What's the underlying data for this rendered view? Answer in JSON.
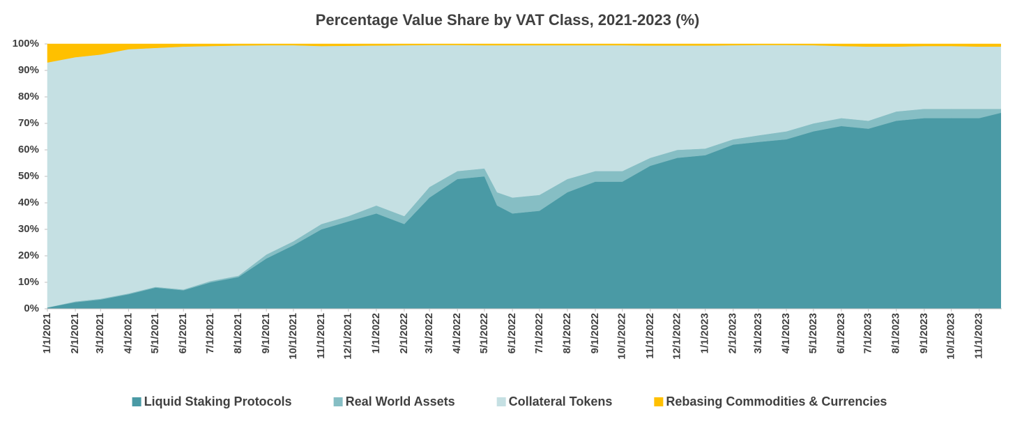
{
  "chart_data": {
    "type": "stacked_area",
    "title": "Percentage Value Share by VAT Class, 2021-2023 (%)",
    "x": [
      "1/1/2021",
      "2/1/2021",
      "3/1/2021",
      "4/1/2021",
      "5/1/2021",
      "6/1/2021",
      "7/1/2021",
      "8/1/2021",
      "9/1/2021",
      "10/1/2021",
      "11/1/2021",
      "12/1/2021",
      "1/1/2022",
      "2/1/2022",
      "3/1/2022",
      "4/1/2022",
      "5/1/2022",
      "5/15/2022",
      "6/1/2022",
      "7/1/2022",
      "8/1/2022",
      "9/1/2022",
      "10/1/2022",
      "11/1/2022",
      "12/1/2022",
      "1/1/2023",
      "2/1/2023",
      "3/1/2023",
      "4/1/2023",
      "5/1/2023",
      "6/1/2023",
      "7/1/2023",
      "8/1/2023",
      "9/1/2023",
      "10/1/2023",
      "11/1/2023",
      "11/25/2023"
    ],
    "series": [
      {
        "name": "Liquid Staking Protocols",
        "color": "#4a9aa5",
        "values": [
          0.5,
          2.5,
          3.5,
          5.5,
          8,
          7,
          10,
          12,
          19,
          24,
          30,
          33,
          36,
          32,
          42,
          49,
          50,
          39,
          36,
          37,
          44,
          48,
          48,
          54,
          57,
          58,
          62,
          63,
          64,
          67,
          69,
          68,
          71,
          72,
          72,
          72,
          74
        ]
      },
      {
        "name": "Real World Assets",
        "color": "#86bec4",
        "values": [
          0,
          0.3,
          0.3,
          0.3,
          0.3,
          0.3,
          0.5,
          0.5,
          1.5,
          1.5,
          2,
          2,
          3,
          3,
          4,
          3,
          3,
          5,
          6,
          6,
          5,
          4,
          4,
          3,
          3,
          2.5,
          2,
          2.5,
          3,
          3,
          3,
          3,
          3.5,
          3.5,
          3.5,
          3.5,
          1.5
        ]
      },
      {
        "name": "Collateral Tokens",
        "color": "#c5e0e3",
        "values": [
          92.5,
          92.2,
          92.2,
          92.2,
          90.2,
          91.7,
          88.7,
          86.9,
          79,
          74,
          67.2,
          64.3,
          60.4,
          64.5,
          53.6,
          47.6,
          46.5,
          55.5,
          57.5,
          56.5,
          50.5,
          47.5,
          47.5,
          42.4,
          39.4,
          38.9,
          35.5,
          34.1,
          32.6,
          29.5,
          27.2,
          28,
          24.5,
          23.7,
          23.7,
          23.5,
          23.5
        ]
      },
      {
        "name": "Rebasing Commodities & Currencies",
        "color": "#ffc000",
        "values": [
          7,
          5,
          4,
          2,
          1.5,
          1,
          0.8,
          0.6,
          0.5,
          0.5,
          0.8,
          0.7,
          0.6,
          0.5,
          0.4,
          0.4,
          0.5,
          0.5,
          0.5,
          0.5,
          0.5,
          0.5,
          0.5,
          0.6,
          0.6,
          0.6,
          0.5,
          0.4,
          0.4,
          0.5,
          0.8,
          1,
          1,
          0.8,
          0.8,
          1,
          1
        ]
      }
    ],
    "xlim": [
      "1/1/2021",
      "11/26/2023"
    ],
    "xticks": [
      "1/1/2021",
      "2/1/2021",
      "3/1/2021",
      "4/1/2021",
      "5/1/2021",
      "6/1/2021",
      "7/1/2021",
      "8/1/2021",
      "9/1/2021",
      "10/1/2021",
      "11/1/2021",
      "12/1/2021",
      "1/1/2022",
      "2/1/2022",
      "3/1/2022",
      "4/1/2022",
      "5/1/2022",
      "6/1/2022",
      "7/1/2022",
      "8/1/2022",
      "9/1/2022",
      "10/1/2022",
      "11/1/2022",
      "12/1/2022",
      "1/1/2023",
      "2/1/2023",
      "3/1/2023",
      "4/1/2023",
      "5/1/2023",
      "6/1/2023",
      "7/1/2023",
      "8/1/2023",
      "9/1/2023",
      "10/1/2023",
      "11/1/2023"
    ],
    "ylim": [
      0,
      100
    ],
    "yticks": [
      {
        "value": 0,
        "label": "0%"
      },
      {
        "value": 10,
        "label": "10%"
      },
      {
        "value": 20,
        "label": "20%"
      },
      {
        "value": 30,
        "label": "30%"
      },
      {
        "value": 40,
        "label": "40%"
      },
      {
        "value": 50,
        "label": "50%"
      },
      {
        "value": 60,
        "label": "60%"
      },
      {
        "value": 70,
        "label": "70%"
      },
      {
        "value": 80,
        "label": "80%"
      },
      {
        "value": 90,
        "label": "90%"
      },
      {
        "value": 100,
        "label": "100%"
      }
    ],
    "legend": "bottom"
  }
}
